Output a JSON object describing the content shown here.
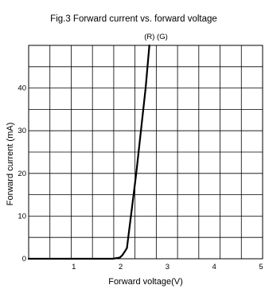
{
  "chart_data": {
    "type": "line",
    "title": "Fig.3 Forward current vs. forward voltage",
    "xlabel": "Forward voltage(V)",
    "ylabel": "Forward current (mA)",
    "xlim": [
      0,
      5
    ],
    "ylim": [
      0,
      50
    ],
    "x_ticks": [
      "1",
      "2",
      "3",
      "4",
      "5"
    ],
    "y_ticks": [
      "0",
      "10",
      "20",
      "30",
      "40"
    ],
    "grid": true,
    "annotation": "(R) (G)",
    "series": [
      {
        "x": [
          0,
          1.8,
          1.95,
          2.0,
          2.05,
          2.1,
          2.3,
          2.5,
          2.58
        ],
        "y": [
          0,
          0,
          0.3,
          0.8,
          1.6,
          2.5,
          20,
          40,
          50
        ]
      }
    ]
  }
}
